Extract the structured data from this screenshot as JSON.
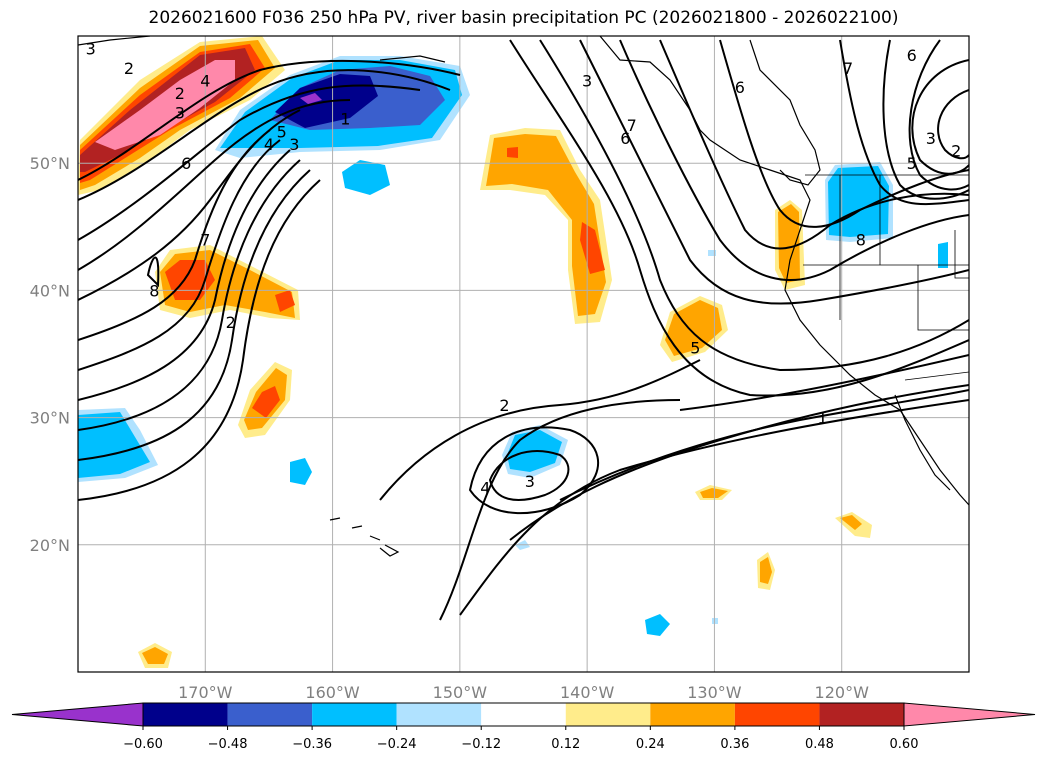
{
  "title": "2026021600 F036 250 hPa PV, river basin precipitation PC (2026021800 - 2026022100)",
  "map": {
    "lon_range": [
      -180,
      -110
    ],
    "lat_range": [
      10,
      60
    ],
    "lat_gridlines": [
      {
        "value": 50,
        "label": "50°N"
      },
      {
        "value": 40,
        "label": "40°N"
      },
      {
        "value": 30,
        "label": "30°N"
      },
      {
        "value": 20,
        "label": "20°N"
      }
    ],
    "lon_gridlines": [
      {
        "value": -170,
        "label": "170°W"
      },
      {
        "value": -160,
        "label": "160°W"
      },
      {
        "value": -150,
        "label": "150°W"
      },
      {
        "value": -140,
        "label": "140°W"
      },
      {
        "value": -130,
        "label": "130°W"
      },
      {
        "value": -120,
        "label": "120°W"
      }
    ],
    "pv_contour_labels": [
      {
        "text": "3",
        "lon": -179,
        "lat": 59
      },
      {
        "text": "2",
        "lon": -176,
        "lat": 57.5
      },
      {
        "text": "2",
        "lon": -172,
        "lat": 55.5
      },
      {
        "text": "3",
        "lon": -172,
        "lat": 54
      },
      {
        "text": "4",
        "lon": -170,
        "lat": 56.5
      },
      {
        "text": "6",
        "lon": -171.5,
        "lat": 50
      },
      {
        "text": "5",
        "lon": -164,
        "lat": 52.5
      },
      {
        "text": "4",
        "lon": -165,
        "lat": 51.5
      },
      {
        "text": "3",
        "lon": -163,
        "lat": 51.5
      },
      {
        "text": "1",
        "lon": -159,
        "lat": 53.5
      },
      {
        "text": "7",
        "lon": -170,
        "lat": 44
      },
      {
        "text": "8",
        "lon": -174,
        "lat": 40
      },
      {
        "text": "2",
        "lon": -168,
        "lat": 37.5
      },
      {
        "text": "3",
        "lon": -140,
        "lat": 56.5
      },
      {
        "text": "7",
        "lon": -136.5,
        "lat": 53
      },
      {
        "text": "6",
        "lon": -137,
        "lat": 52
      },
      {
        "text": "6",
        "lon": -128,
        "lat": 56
      },
      {
        "text": "7",
        "lon": -119.5,
        "lat": 57.5
      },
      {
        "text": "6",
        "lon": -114.5,
        "lat": 58.5
      },
      {
        "text": "3",
        "lon": -113,
        "lat": 52
      },
      {
        "text": "2",
        "lon": -111,
        "lat": 51
      },
      {
        "text": "5",
        "lon": -114.5,
        "lat": 50
      },
      {
        "text": "8",
        "lon": -118.5,
        "lat": 44
      },
      {
        "text": "5",
        "lon": -131.5,
        "lat": 35.5
      },
      {
        "text": "2",
        "lon": -146.5,
        "lat": 31
      },
      {
        "text": "3",
        "lon": -144.5,
        "lat": 25
      },
      {
        "text": "4",
        "lon": -148,
        "lat": 24.5
      },
      {
        "text": "1",
        "lon": -121.5,
        "lat": 30
      }
    ]
  },
  "colorbar": {
    "colors": [
      "#9932cc",
      "#00008b",
      "#3a5fcd",
      "#00bfff",
      "#b0e2ff",
      "#ffffff",
      "#ffec8b",
      "#ffa500",
      "#ff4500",
      "#b22222",
      "#ff88aa"
    ],
    "labels": [
      "−0.60",
      "−0.48",
      "−0.36",
      "−0.24",
      "−0.12",
      "0.12",
      "0.24",
      "0.36",
      "0.48",
      "0.60"
    ]
  }
}
